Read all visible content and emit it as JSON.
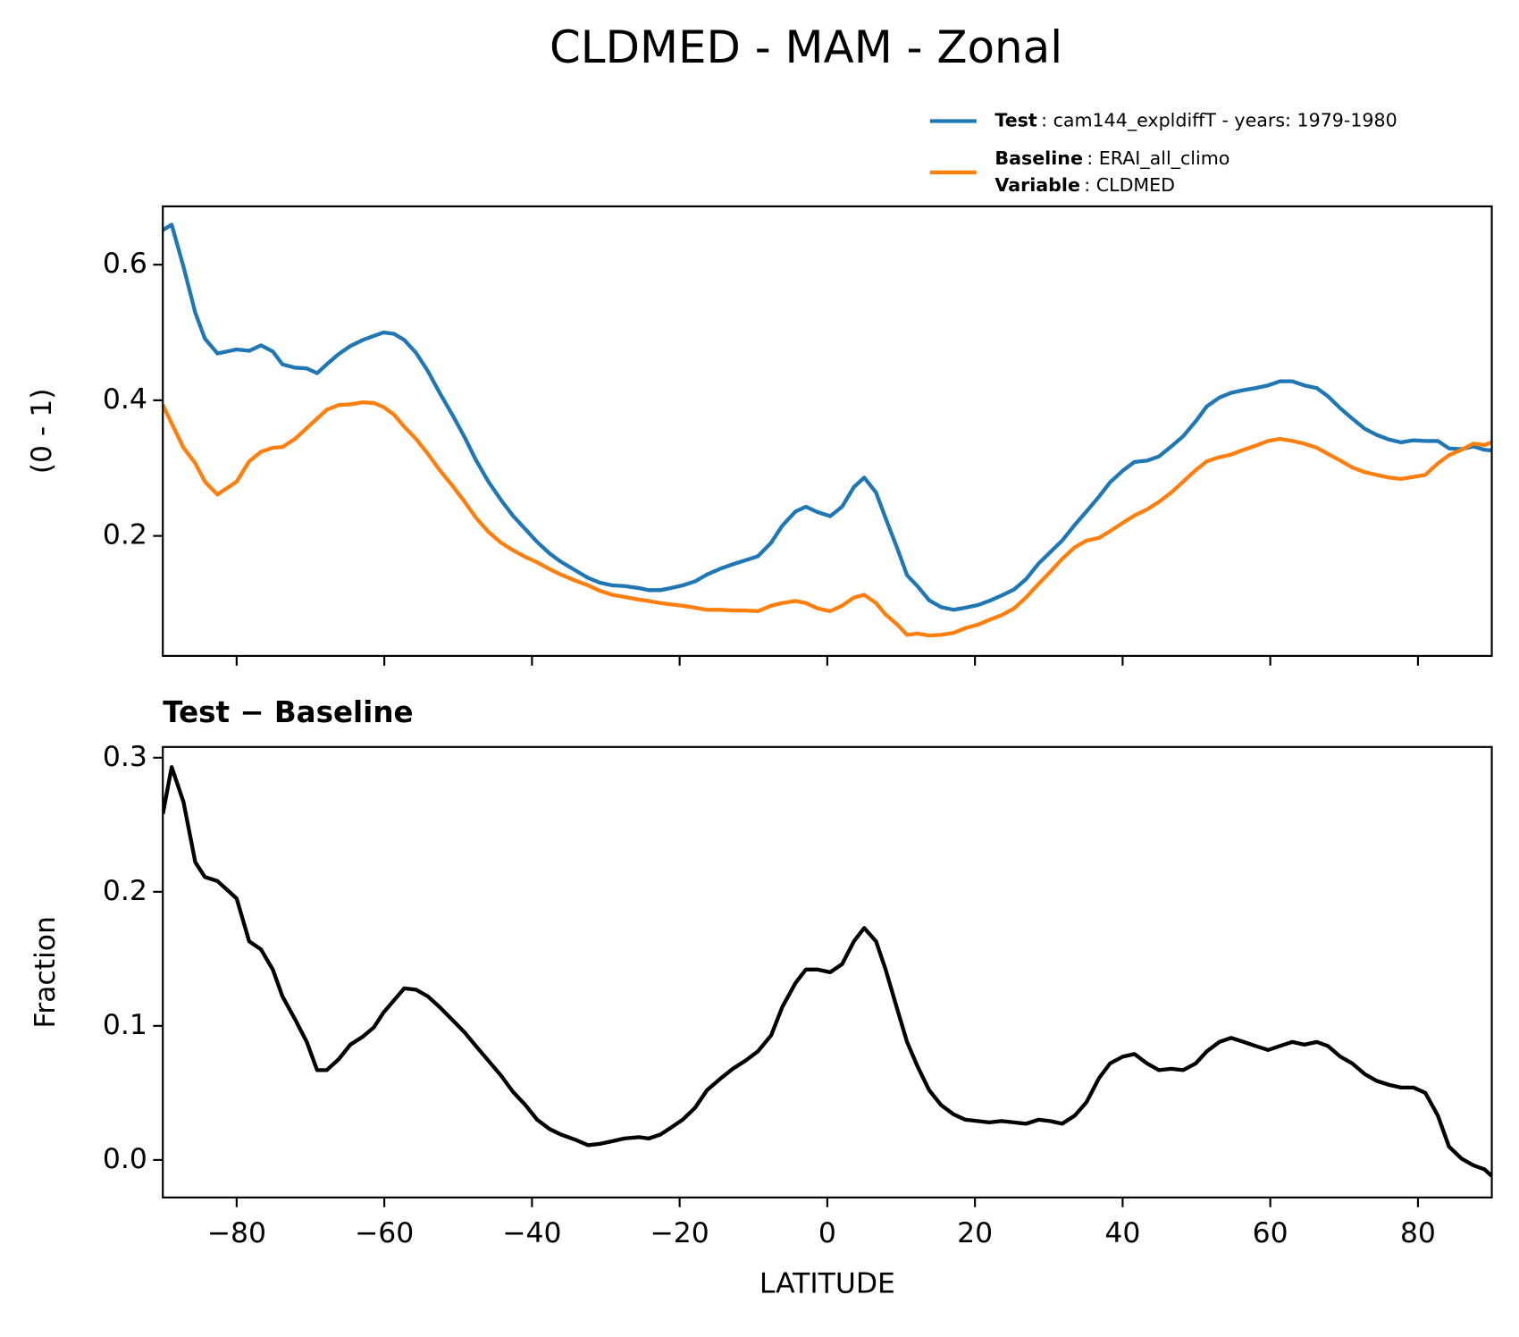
{
  "chart_data": [
    {
      "type": "line",
      "title": "CLDMED - MAM - Zonal",
      "ylabel": "(0 - 1)",
      "x": [
        -90,
        -88.8,
        -87.2,
        -85.6,
        -84.3,
        -82.6,
        -80,
        -78.3,
        -76.7,
        -75.1,
        -73.8,
        -72.1,
        -70.5,
        -69.1,
        -67.8,
        -66.2,
        -64.6,
        -62.9,
        -61.4,
        -60.1,
        -58.7,
        -57.3,
        -55.7,
        -54.1,
        -52.5,
        -50.7,
        -49.1,
        -47.6,
        -45.9,
        -44.2,
        -42.6,
        -40.9,
        -39.3,
        -37.6,
        -36.1,
        -34.1,
        -32.4,
        -30.8,
        -29.1,
        -27.5,
        -25.5,
        -24.2,
        -22.6,
        -21.2,
        -19.6,
        -17.9,
        -16.3,
        -14.4,
        -12.8,
        -11.1,
        -9.4,
        -7.6,
        -6.1,
        -4.3,
        -2.9,
        -1.3,
        0.4,
        2,
        3.6,
        5,
        6.6,
        7.9,
        9.5,
        10.8,
        12.2,
        13.8,
        15.4,
        17.1,
        18.7,
        20.4,
        21.9,
        23.6,
        25.3,
        26.9,
        28.6,
        30.2,
        31.8,
        33.5,
        35.1,
        36.8,
        38.3,
        40,
        41.6,
        43.3,
        44.9,
        46.6,
        48.2,
        49.9,
        51.4,
        53.1,
        54.7,
        56.4,
        58,
        59.7,
        61.3,
        63,
        64.6,
        66.3,
        67.8,
        69.5,
        71.1,
        72.8,
        74.4,
        76.1,
        77.7,
        79.4,
        81,
        82.7,
        84.2,
        85.9,
        87.5,
        89,
        90
      ],
      "series": [
        {
          "name": "Test",
          "description": ": cam144_expldiffT - years: 1979-1980",
          "color": "#1f77b4",
          "values": [
            0.651,
            0.659,
            0.597,
            0.529,
            0.491,
            0.469,
            0.475,
            0.473,
            0.481,
            0.472,
            0.453,
            0.448,
            0.447,
            0.44,
            0.453,
            0.468,
            0.48,
            0.489,
            0.495,
            0.5,
            0.498,
            0.489,
            0.47,
            0.443,
            0.411,
            0.377,
            0.345,
            0.312,
            0.28,
            0.253,
            0.23,
            0.21,
            0.191,
            0.174,
            0.162,
            0.149,
            0.138,
            0.131,
            0.127,
            0.126,
            0.123,
            0.12,
            0.12,
            0.123,
            0.127,
            0.133,
            0.143,
            0.152,
            0.158,
            0.164,
            0.17,
            0.19,
            0.215,
            0.236,
            0.243,
            0.235,
            0.229,
            0.243,
            0.272,
            0.286,
            0.264,
            0.226,
            0.181,
            0.142,
            0.126,
            0.105,
            0.095,
            0.091,
            0.094,
            0.098,
            0.104,
            0.112,
            0.121,
            0.136,
            0.159,
            0.176,
            0.193,
            0.216,
            0.236,
            0.258,
            0.279,
            0.296,
            0.309,
            0.311,
            0.317,
            0.332,
            0.347,
            0.369,
            0.391,
            0.404,
            0.411,
            0.415,
            0.418,
            0.422,
            0.428,
            0.428,
            0.422,
            0.418,
            0.406,
            0.388,
            0.373,
            0.358,
            0.349,
            0.342,
            0.338,
            0.341,
            0.34,
            0.34,
            0.329,
            0.328,
            0.332,
            0.327,
            0.326
          ]
        },
        {
          "name": "Baseline",
          "description": ": ERAI_all_climo",
          "color": "#ff7f0e",
          "values": [
            0.393,
            0.366,
            0.33,
            0.307,
            0.28,
            0.261,
            0.28,
            0.31,
            0.324,
            0.33,
            0.331,
            0.343,
            0.359,
            0.373,
            0.386,
            0.393,
            0.394,
            0.397,
            0.396,
            0.39,
            0.379,
            0.361,
            0.343,
            0.321,
            0.297,
            0.273,
            0.25,
            0.227,
            0.206,
            0.19,
            0.179,
            0.169,
            0.161,
            0.151,
            0.143,
            0.134,
            0.127,
            0.119,
            0.113,
            0.11,
            0.106,
            0.104,
            0.101,
            0.099,
            0.097,
            0.094,
            0.091,
            0.091,
            0.09,
            0.09,
            0.089,
            0.097,
            0.101,
            0.104,
            0.101,
            0.093,
            0.089,
            0.097,
            0.109,
            0.113,
            0.101,
            0.084,
            0.069,
            0.054,
            0.056,
            0.053,
            0.054,
            0.057,
            0.064,
            0.069,
            0.076,
            0.083,
            0.093,
            0.109,
            0.129,
            0.147,
            0.166,
            0.183,
            0.193,
            0.197,
            0.207,
            0.219,
            0.23,
            0.239,
            0.25,
            0.264,
            0.28,
            0.297,
            0.31,
            0.316,
            0.32,
            0.327,
            0.333,
            0.34,
            0.343,
            0.34,
            0.336,
            0.33,
            0.321,
            0.311,
            0.301,
            0.294,
            0.29,
            0.286,
            0.284,
            0.287,
            0.29,
            0.307,
            0.319,
            0.327,
            0.336,
            0.334,
            0.338
          ]
        }
      ],
      "legend_note": {
        "name": "Variable",
        "description": ": CLDMED"
      },
      "xlim": [
        -90,
        90
      ],
      "xticks": [
        -80,
        -60,
        -40,
        -20,
        0,
        20,
        40,
        60,
        80
      ],
      "show_xtick_labels": false,
      "ylim": [
        0.023,
        0.686
      ],
      "yticks": [
        0.2,
        0.4,
        0.6
      ]
    },
    {
      "type": "line",
      "title": "Test − Baseline",
      "ylabel": "Fraction",
      "xlabel": "LATITUDE",
      "color": "#000000",
      "x": [
        -90,
        -88.8,
        -87.2,
        -85.6,
        -84.3,
        -82.6,
        -80,
        -78.3,
        -76.7,
        -75.1,
        -73.8,
        -72.1,
        -70.5,
        -69.1,
        -67.8,
        -66.2,
        -64.6,
        -62.9,
        -61.4,
        -60.1,
        -58.7,
        -57.3,
        -55.7,
        -54.1,
        -52.5,
        -50.7,
        -49.1,
        -47.6,
        -45.9,
        -44.2,
        -42.6,
        -40.9,
        -39.3,
        -37.6,
        -36.1,
        -34.1,
        -32.4,
        -30.8,
        -29.1,
        -27.5,
        -25.5,
        -24.2,
        -22.6,
        -21.2,
        -19.6,
        -17.9,
        -16.3,
        -14.4,
        -12.8,
        -11.1,
        -9.4,
        -7.6,
        -6.1,
        -4.3,
        -2.9,
        -1.3,
        0.4,
        2,
        3.6,
        5,
        6.6,
        7.9,
        9.5,
        10.8,
        12.2,
        13.8,
        15.4,
        17.1,
        18.7,
        20.4,
        21.9,
        23.6,
        25.3,
        26.9,
        28.6,
        30.2,
        31.8,
        33.5,
        35.1,
        36.8,
        38.3,
        40,
        41.6,
        43.3,
        44.9,
        46.6,
        48.2,
        49.9,
        51.4,
        53.1,
        54.7,
        56.4,
        58,
        59.7,
        61.3,
        63,
        64.6,
        66.3,
        67.8,
        69.5,
        71.1,
        72.8,
        74.4,
        76.1,
        77.7,
        79.4,
        81,
        82.7,
        84.2,
        85.9,
        87.5,
        89,
        90
      ],
      "values": [
        0.258,
        0.293,
        0.267,
        0.222,
        0.211,
        0.208,
        0.195,
        0.163,
        0.157,
        0.142,
        0.122,
        0.105,
        0.088,
        0.067,
        0.067,
        0.075,
        0.086,
        0.092,
        0.099,
        0.11,
        0.119,
        0.128,
        0.127,
        0.122,
        0.114,
        0.104,
        0.095,
        0.085,
        0.074,
        0.063,
        0.051,
        0.041,
        0.03,
        0.023,
        0.019,
        0.015,
        0.011,
        0.012,
        0.014,
        0.016,
        0.017,
        0.016,
        0.019,
        0.024,
        0.03,
        0.039,
        0.052,
        0.061,
        0.068,
        0.074,
        0.081,
        0.093,
        0.114,
        0.132,
        0.142,
        0.142,
        0.14,
        0.146,
        0.163,
        0.173,
        0.163,
        0.142,
        0.112,
        0.088,
        0.07,
        0.052,
        0.041,
        0.034,
        0.03,
        0.029,
        0.028,
        0.029,
        0.028,
        0.027,
        0.03,
        0.029,
        0.027,
        0.033,
        0.043,
        0.061,
        0.072,
        0.077,
        0.079,
        0.072,
        0.067,
        0.068,
        0.067,
        0.072,
        0.081,
        0.088,
        0.091,
        0.088,
        0.085,
        0.082,
        0.085,
        0.088,
        0.086,
        0.088,
        0.085,
        0.077,
        0.072,
        0.064,
        0.059,
        0.056,
        0.054,
        0.054,
        0.05,
        0.033,
        0.01,
        0.001,
        -0.004,
        -0.007,
        -0.012
      ],
      "xlim": [
        -90,
        90
      ],
      "xticks": [
        {
          "value": -80,
          "label": "−80"
        },
        {
          "value": -60,
          "label": "−60"
        },
        {
          "value": -40,
          "label": "−40"
        },
        {
          "value": -20,
          "label": "−20"
        },
        0,
        20,
        40,
        60,
        80
      ],
      "ylim": [
        -0.028,
        0.308
      ],
      "yticks": [
        {
          "value": 0,
          "label": "0.0"
        },
        0.1,
        0.2,
        0.3
      ]
    }
  ]
}
